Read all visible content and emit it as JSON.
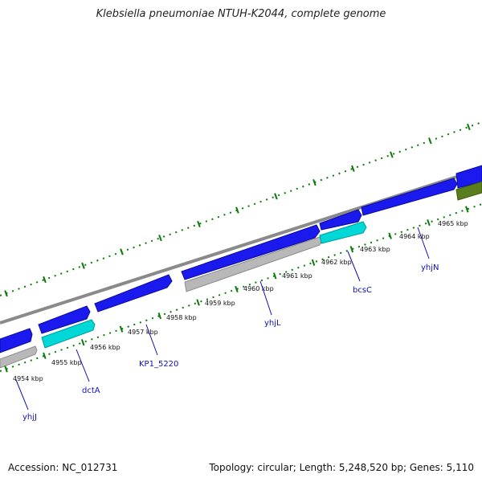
{
  "title": "Klebsiella pneumoniae NTUH-K2044, complete genome",
  "footer": {
    "accession": "Accession: NC_012731",
    "topology": "Topology: circular; Length: 5,248,520 bp; Genes: 5,110"
  },
  "colors": {
    "backbone": "#8a8a8a",
    "cds_forward": "#1a1aee",
    "cds_reverse": "#b8b8b8",
    "rrna": "#00d8d8",
    "trna": "#5a7d1e",
    "tick": "#0a7a0a",
    "gene_label": "#1111aa"
  },
  "kbp_labels": [
    "4954 kbp",
    "4955 kbp",
    "4956 kbp",
    "4957 kbp",
    "4958 kbp",
    "4959 kbp",
    "4960 kbp",
    "4961 kbp",
    "4962 kbp",
    "4963 kbp",
    "4964 kbp",
    "4965 kbp"
  ],
  "gene_labels": [
    "yhjJ",
    "dctA",
    "KP1_5220",
    "yhjL",
    "bcsC",
    "yhjN"
  ]
}
